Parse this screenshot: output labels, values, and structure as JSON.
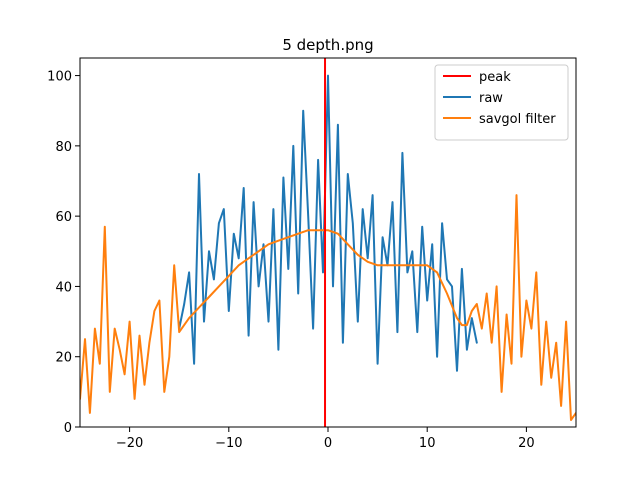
{
  "chart_data": {
    "type": "line",
    "title": "5 depth.png",
    "xlabel": "",
    "ylabel": "",
    "xlim": [
      -25,
      25
    ],
    "ylim": [
      0,
      105
    ],
    "xticks": [
      -20,
      -10,
      0,
      10,
      20
    ],
    "yticks": [
      0,
      20,
      40,
      60,
      80,
      100
    ],
    "xtick_labels": [
      "−20",
      "−10",
      "0",
      "10",
      "20"
    ],
    "ytick_labels": [
      "0",
      "20",
      "40",
      "60",
      "80",
      "100"
    ],
    "grid": false,
    "legend_position": "top-right",
    "peak": {
      "name": "peak",
      "x": -0.3,
      "color": "#ff0000"
    },
    "series": [
      {
        "name": "raw",
        "color": "#1f77b4",
        "x": [
          -15.0,
          -14.5,
          -14.0,
          -13.5,
          -13.0,
          -12.5,
          -12.0,
          -11.5,
          -11.0,
          -10.5,
          -10.0,
          -9.5,
          -9.0,
          -8.5,
          -8.0,
          -7.5,
          -7.0,
          -6.5,
          -6.0,
          -5.5,
          -5.0,
          -4.5,
          -4.0,
          -3.5,
          -3.0,
          -2.5,
          -2.0,
          -1.5,
          -1.0,
          -0.5,
          0.0,
          0.5,
          1.0,
          1.5,
          2.0,
          2.5,
          3.0,
          3.5,
          4.0,
          4.5,
          5.0,
          5.5,
          6.0,
          6.5,
          7.0,
          7.5,
          8.0,
          8.5,
          9.0,
          9.5,
          10.0,
          10.5,
          11.0,
          11.5,
          12.0,
          12.5,
          13.0,
          13.5,
          14.0,
          14.5,
          15.0
        ],
        "y": [
          28,
          35,
          44,
          18,
          72,
          30,
          50,
          42,
          58,
          62,
          33,
          55,
          48,
          68,
          26,
          64,
          40,
          52,
          30,
          62,
          22,
          71,
          45,
          80,
          38,
          90,
          60,
          28,
          76,
          44,
          100,
          40,
          86,
          24,
          72,
          58,
          30,
          62,
          48,
          66,
          18,
          54,
          46,
          64,
          27,
          78,
          44,
          50,
          27,
          57,
          36,
          52,
          20,
          58,
          42,
          40,
          16,
          45,
          22,
          31,
          24
        ]
      },
      {
        "name": "savgol filter",
        "color": "#ff7f0e",
        "x": [
          -25.0,
          -24.5,
          -24.0,
          -23.5,
          -23.0,
          -22.5,
          -22.0,
          -21.5,
          -21.0,
          -20.5,
          -20.0,
          -19.5,
          -19.0,
          -18.5,
          -18.0,
          -17.5,
          -17.0,
          -16.5,
          -16.0,
          -15.5,
          -15.0,
          -14.0,
          -13.0,
          -12.0,
          -11.0,
          -10.0,
          -9.0,
          -8.0,
          -7.0,
          -6.0,
          -5.0,
          -4.0,
          -3.0,
          -2.0,
          -1.0,
          0.0,
          1.0,
          2.0,
          3.0,
          4.0,
          5.0,
          6.0,
          7.0,
          8.0,
          9.0,
          10.0,
          11.0,
          12.0,
          13.0,
          13.5,
          14.0,
          14.5,
          15.0,
          15.5,
          16.0,
          16.5,
          17.0,
          17.5,
          18.0,
          18.5,
          19.0,
          19.5,
          20.0,
          20.5,
          21.0,
          21.5,
          22.0,
          22.5,
          23.0,
          23.5,
          24.0,
          24.5,
          25.0
        ],
        "y": [
          8,
          25,
          4,
          28,
          18,
          57,
          10,
          28,
          22,
          15,
          30,
          8,
          26,
          12,
          24,
          33,
          36,
          10,
          20,
          46,
          27,
          31,
          34,
          37,
          40,
          43,
          46,
          48,
          50,
          52,
          53,
          54,
          55,
          56,
          56,
          56,
          55,
          52,
          49,
          47,
          46,
          46,
          46,
          46,
          46,
          46,
          44,
          38,
          31,
          29,
          29,
          33,
          35,
          28,
          38,
          24,
          40,
          10,
          32,
          18,
          66,
          20,
          36,
          28,
          44,
          12,
          30,
          14,
          24,
          6,
          30,
          2,
          4
        ]
      }
    ]
  }
}
